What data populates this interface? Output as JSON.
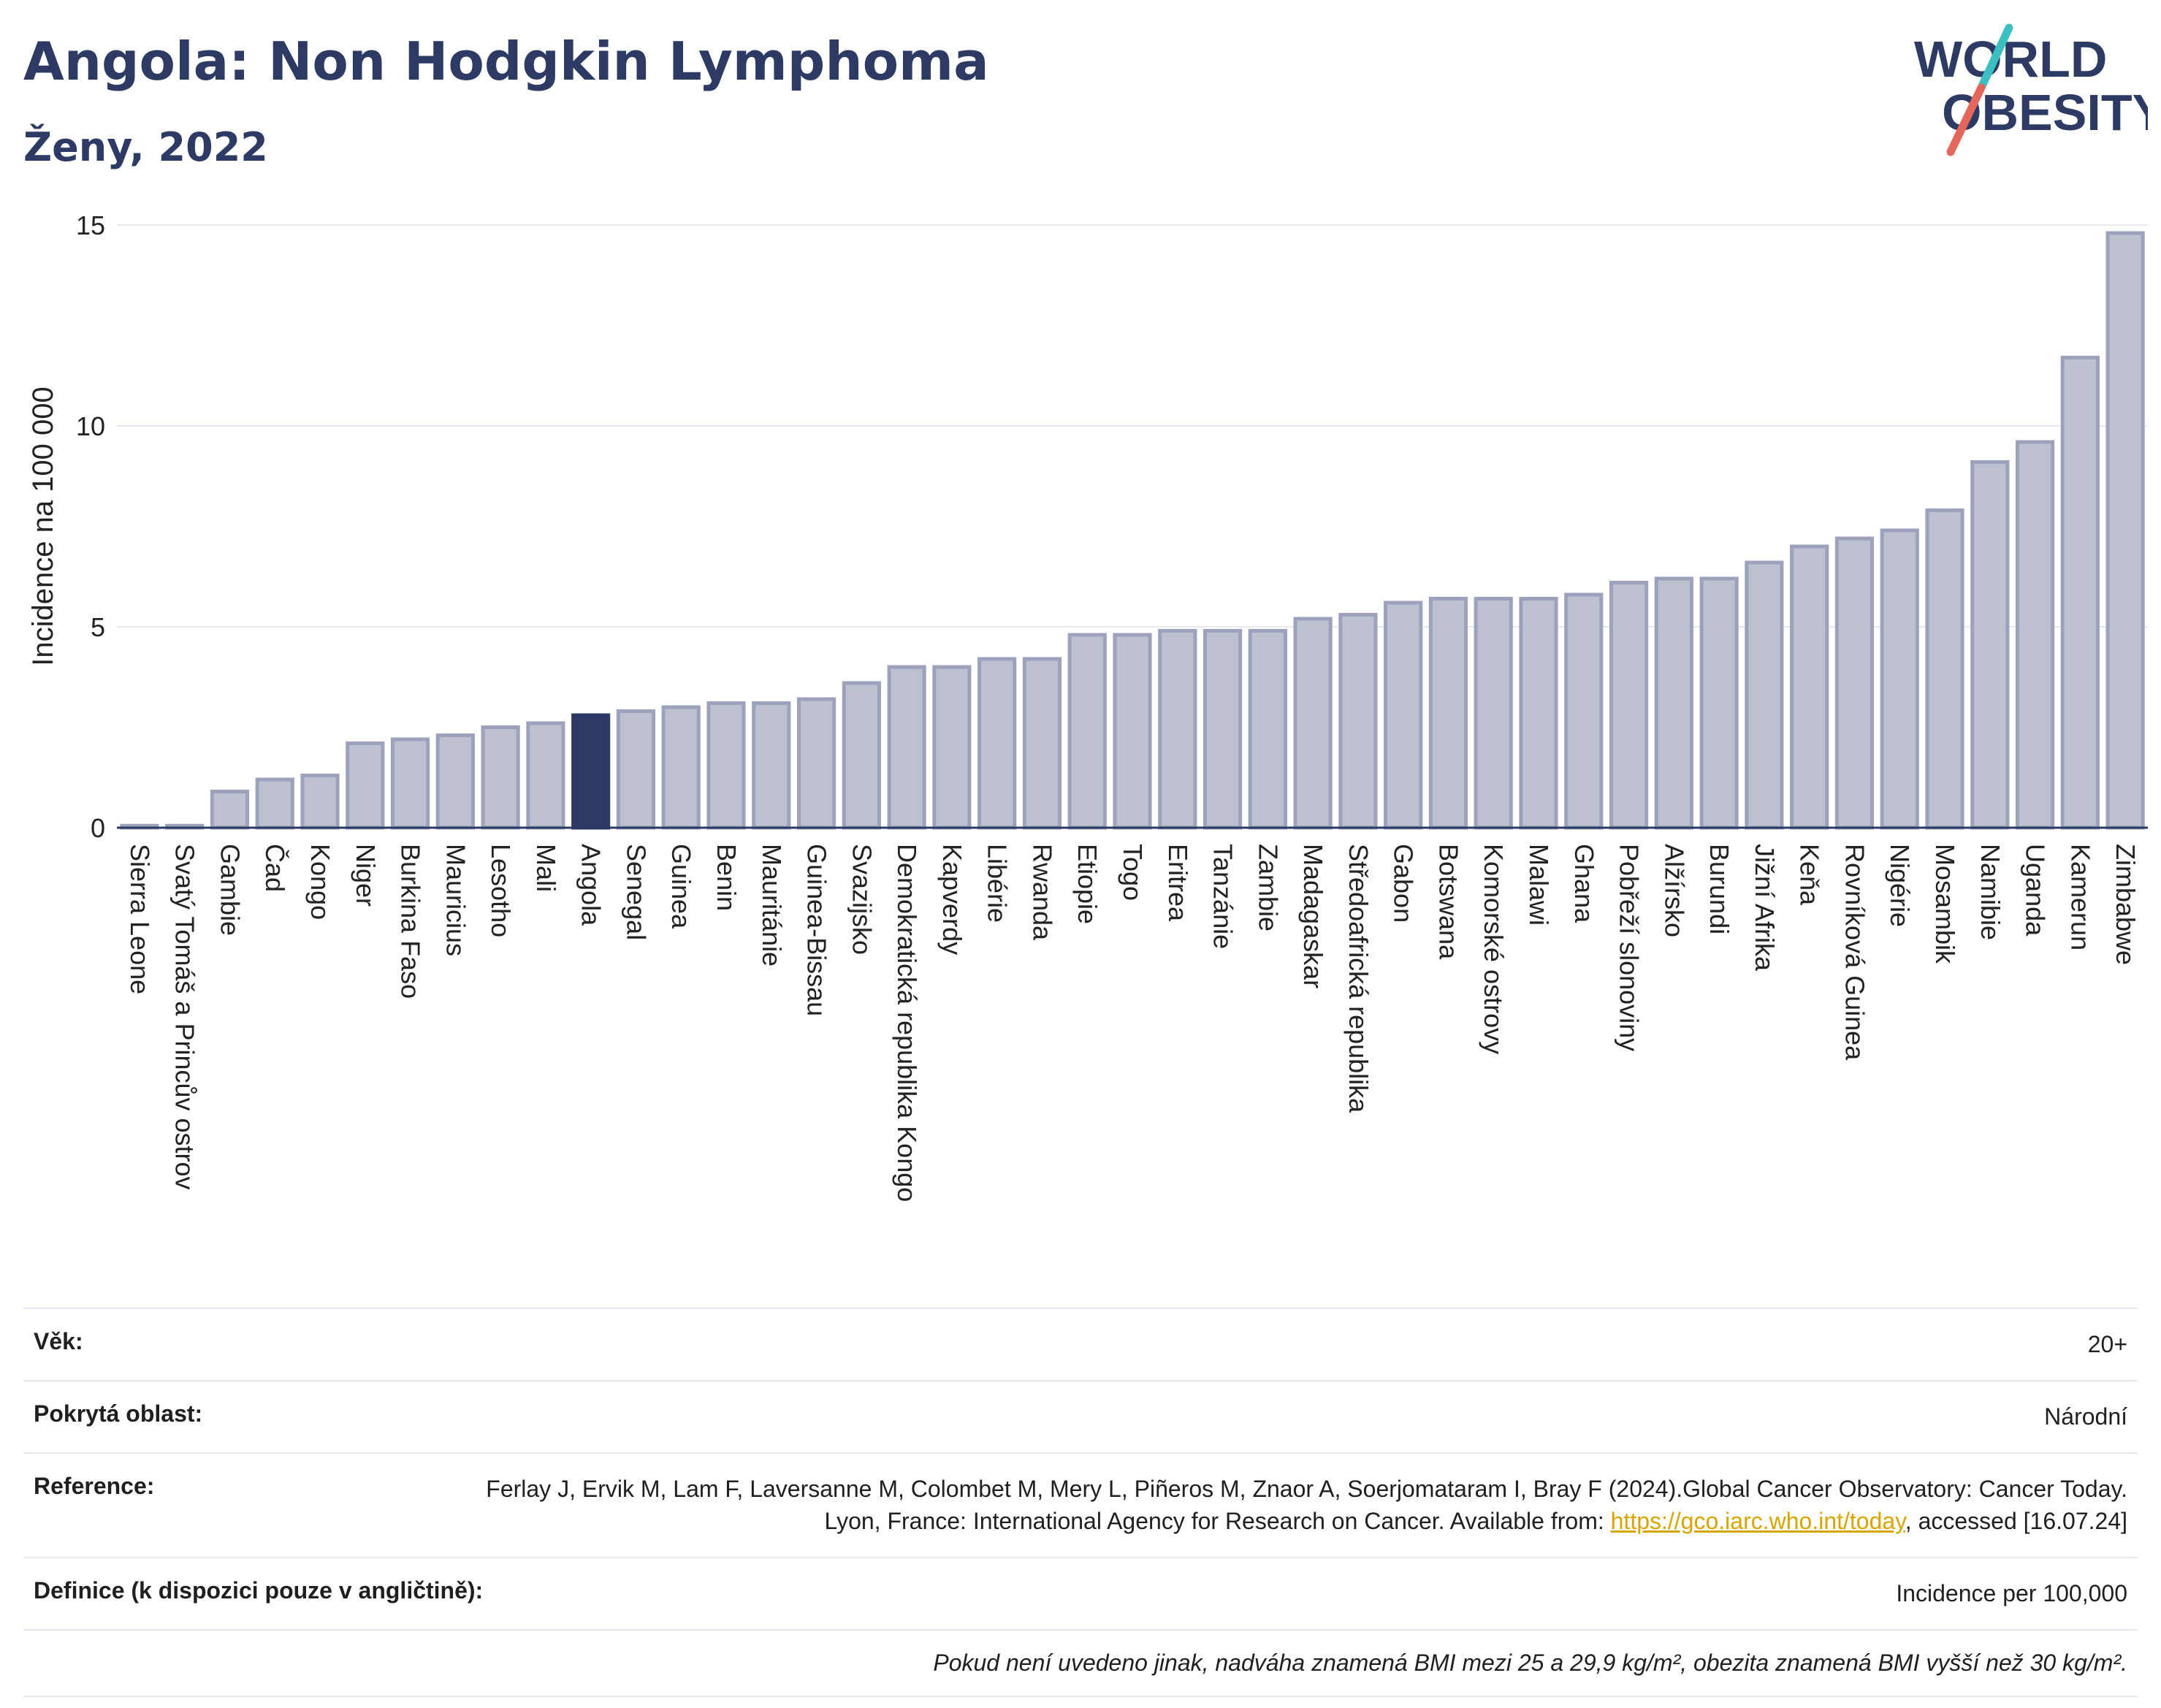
{
  "header": {
    "title": "Angola: Non Hodgkin Lymphoma",
    "subtitle": "Ženy, 2022"
  },
  "logo": {
    "line1": "WORLD",
    "line2": "OBESITY",
    "colors": {
      "text": "#2d3a63",
      "teal": "#3bbfc1",
      "coral": "#e5675b"
    }
  },
  "colors": {
    "bar_fill": "#bcc0cf",
    "bar_stroke": "#9ca2bb",
    "highlight_fill": "#2d3a63",
    "grid": "#e6e9ef",
    "axis": "#2d3a63"
  },
  "chart_data": {
    "type": "bar",
    "ylabel": "Incidence na 100 000",
    "xlabel": "",
    "ylim": [
      0,
      15
    ],
    "yticks": [
      0,
      5,
      10,
      15
    ],
    "grid": true,
    "highlight": "Angola",
    "categories": [
      "Sierra Leone",
      "Svatý Tomáš a Princův ostrov",
      "Gambie",
      "Čad",
      "Kongo",
      "Niger",
      "Burkina Faso",
      "Mauricius",
      "Lesotho",
      "Mali",
      "Angola",
      "Senegal",
      "Guinea",
      "Benin",
      "Mauritánie",
      "Guinea-Bissau",
      "Svazijsko",
      "Demokratická republika Kongo",
      "Kapverdy",
      "Libérie",
      "Rwanda",
      "Etiopie",
      "Togo",
      "Eritrea",
      "Tanzánie",
      "Zambie",
      "Madagaskar",
      "Středoafrická republika",
      "Gabon",
      "Botswana",
      "Komorské ostrovy",
      "Malawi",
      "Ghana",
      "Pobřeží slonoviny",
      "Alžírsko",
      "Burundi",
      "Jižní Afrika",
      "Keňa",
      "Rovníková Guinea",
      "Nigérie",
      "Mosambik",
      "Namibie",
      "Uganda",
      "Kamerun",
      "Zimbabwe"
    ],
    "values": [
      0.05,
      0.05,
      0.9,
      1.2,
      1.3,
      2.1,
      2.2,
      2.3,
      2.5,
      2.6,
      2.8,
      2.9,
      3.0,
      3.1,
      3.1,
      3.2,
      3.6,
      4.0,
      4.0,
      4.2,
      4.2,
      4.8,
      4.8,
      4.9,
      4.9,
      4.9,
      5.2,
      5.3,
      5.6,
      5.7,
      5.7,
      5.7,
      5.8,
      6.1,
      6.2,
      6.2,
      6.6,
      7.0,
      7.2,
      7.4,
      7.9,
      9.1,
      9.6,
      11.7,
      14.8
    ]
  },
  "info": {
    "age_label": "Věk:",
    "age_value": "20+",
    "area_label": "Pokrytá oblast:",
    "area_value": "Národní",
    "reference_label": "Reference:",
    "reference_text": "Ferlay J, Ervik M, Lam F, Laversanne M, Colombet M, Mery L, Piñeros M, Znaor A, Soerjomataram I, Bray F (2024).Global Cancer Observatory: Cancer Today. Lyon, France: International Agency for Research on Cancer. Available from: ",
    "reference_link": "https://gco.iarc.who.int/today",
    "reference_suffix": ", accessed [16.07.24]",
    "definition_label": "Definice (k dispozici pouze v angličtině):",
    "definition_value": "Incidence per 100,000",
    "note": "Pokud není uvedeno jinak, nadváha znamená BMI mezi 25 a 29,9 kg/m², obezita znamená BMI vyšší než 30 kg/m²."
  }
}
